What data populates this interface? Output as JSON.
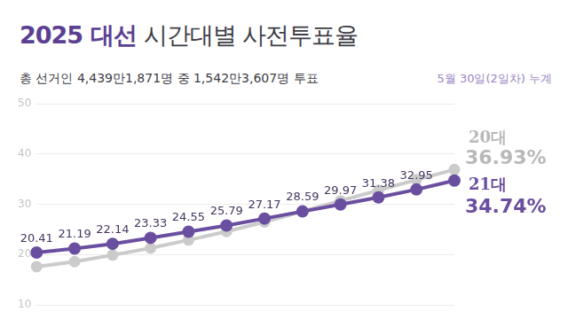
{
  "chart_data": {
    "type": "line",
    "title": "2025 대선 시간대별 사전투표율",
    "subtitle": "총 선거인 4,439만1,871명 중 1,542만3,607명 투표",
    "annotations": [
      "5월 30일(2일차) 누계"
    ],
    "categories": [
      null,
      null,
      null,
      null,
      null,
      null,
      null,
      null,
      null,
      null,
      null,
      null
    ],
    "series": [
      {
        "name": "20대",
        "color": "#cbcbcb",
        "marker": "circle",
        "line_style": "solid",
        "values": [
          17.6,
          18.6,
          19.9,
          21.3,
          22.9,
          24.6,
          26.5,
          28.6,
          30.7,
          32.8,
          34.9,
          36.93
        ],
        "value_labels": [
          null,
          null,
          null,
          null,
          null,
          null,
          null,
          null,
          null,
          null,
          null,
          "36.93%"
        ]
      },
      {
        "name": "21대",
        "color": "#6a4e9f",
        "marker": "circle",
        "line_style": "solid",
        "values": [
          20.41,
          21.19,
          22.14,
          23.33,
          24.55,
          25.79,
          27.17,
          28.59,
          29.97,
          31.38,
          32.95,
          34.74
        ],
        "value_labels": [
          "20.41",
          "21.19",
          "22.14",
          "23.33",
          "24.55",
          "25.79",
          "27.17",
          "28.59",
          "29.97",
          "31.38",
          "32.95",
          "34.74%"
        ]
      }
    ],
    "ylim": [
      10,
      50
    ],
    "yticks": [
      10,
      20,
      30,
      40,
      50
    ],
    "grid": true,
    "data_labels": true,
    "tick_labels": "y"
  }
}
